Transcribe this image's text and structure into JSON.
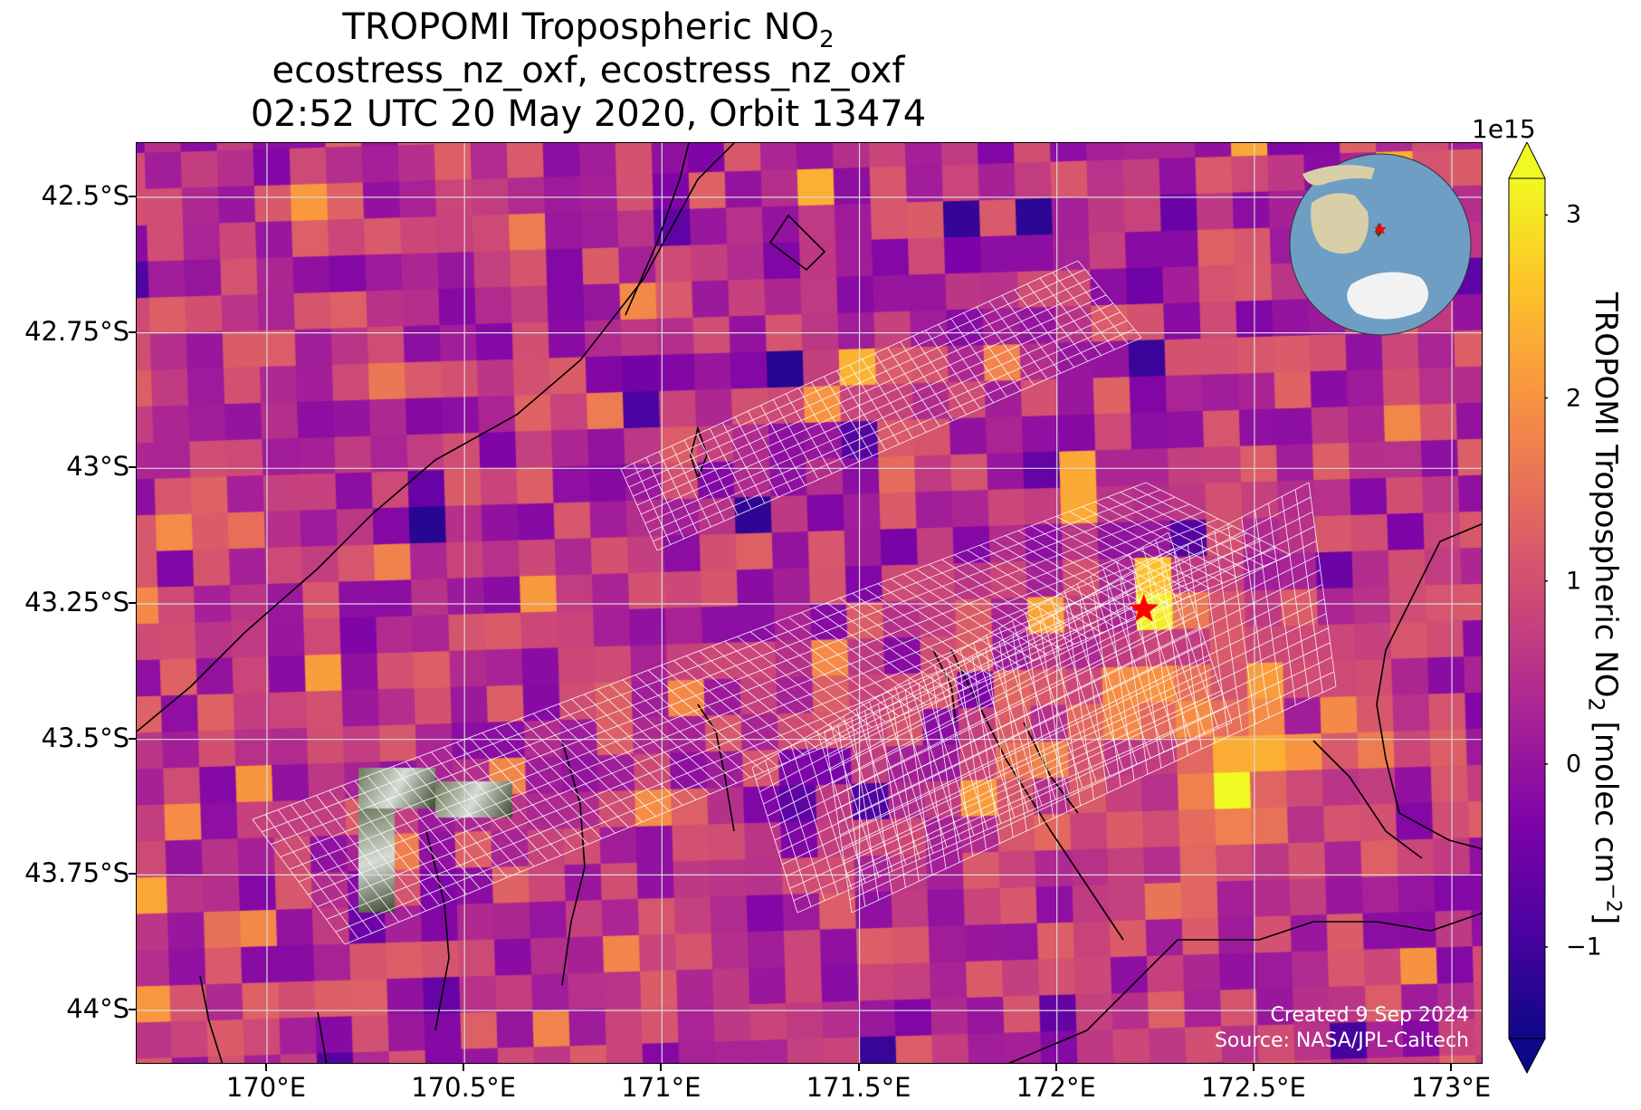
{
  "title": {
    "line1_prefix": "TROPOMI Tropospheric NO",
    "line1_sub": "2",
    "line2": "ecostress_nz_oxf, ecostress_nz_oxf",
    "line3": "02:52 UTC 20 May 2020, Orbit 13474"
  },
  "map": {
    "lon_range": [
      169.67,
      173.08
    ],
    "lat_range": [
      -44.1,
      -42.4
    ],
    "lat_ticks": [
      {
        "value": -42.5,
        "label": "42.5°S"
      },
      {
        "value": -42.75,
        "label": "42.75°S"
      },
      {
        "value": -43.0,
        "label": "43°S"
      },
      {
        "value": -43.25,
        "label": "43.25°S"
      },
      {
        "value": -43.5,
        "label": "43.5°S"
      },
      {
        "value": -43.75,
        "label": "43.75°S"
      },
      {
        "value": -44.0,
        "label": "44°S"
      }
    ],
    "lon_ticks": [
      {
        "value": 170.0,
        "label": "170°E"
      },
      {
        "value": 170.5,
        "label": "170.5°E"
      },
      {
        "value": 171.0,
        "label": "171°E"
      },
      {
        "value": 171.5,
        "label": "171.5°E"
      },
      {
        "value": 172.0,
        "label": "172°E"
      },
      {
        "value": 172.5,
        "label": "172.5°E"
      },
      {
        "value": 173.0,
        "label": "173°E"
      }
    ],
    "site_marker": {
      "lon": 172.22,
      "lat": -43.26,
      "color": "#ff0000",
      "icon": "star-icon"
    },
    "gridline_color": "#d8d8d8",
    "coastline_color": "#000000",
    "swath_color": "#ffffff",
    "inset": {
      "icon": "globe-icon",
      "ocean_color": "#6f9ec4",
      "land_color": "#d8cfa8",
      "ice_color": "#f2f2f2"
    },
    "credit_line1": "Created 9 Sep 2024",
    "credit_line2": "Source: NASA/JPL-Caltech"
  },
  "colorbar": {
    "exponent_label": "1e15",
    "title_prefix": "TROPOMI Tropospheric NO",
    "title_sub": "2",
    "title_suffix": " [molec cm",
    "title_sup": "−2",
    "title_end": "]",
    "range": [
      -1.5,
      3.2
    ],
    "extend": "both",
    "ticks": [
      {
        "value": -1,
        "label": "−1"
      },
      {
        "value": 0,
        "label": "0"
      },
      {
        "value": 1,
        "label": "1"
      },
      {
        "value": 2,
        "label": "2"
      },
      {
        "value": 3,
        "label": "3"
      }
    ],
    "colormap": "plasma"
  }
}
